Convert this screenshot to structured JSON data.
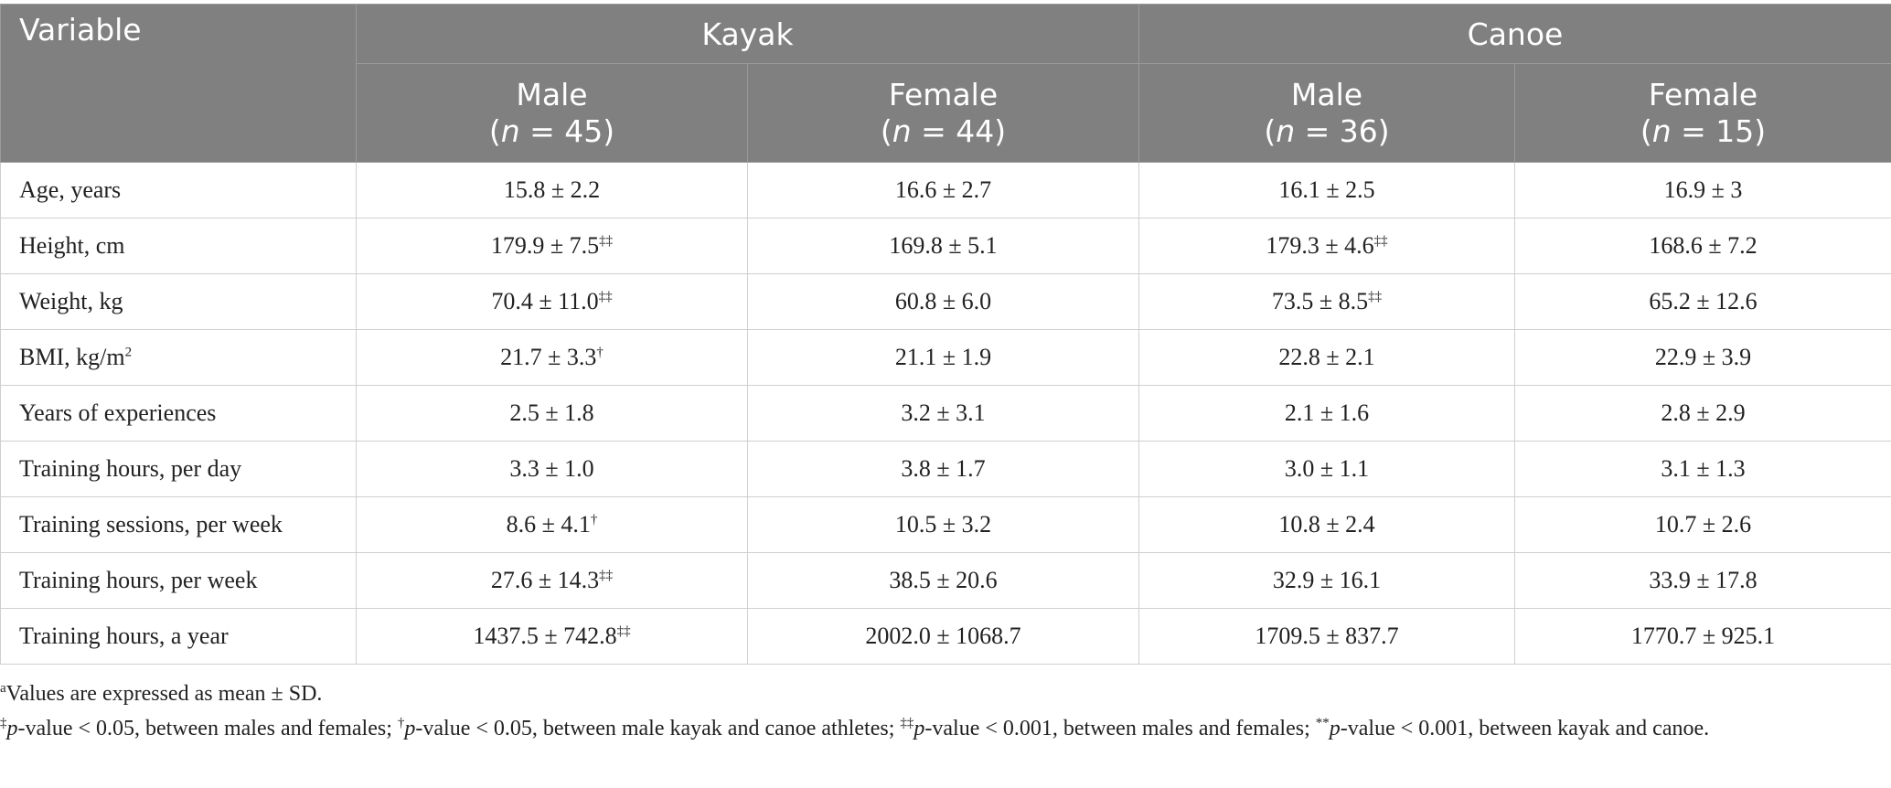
{
  "table": {
    "variable_header": "Variable",
    "groups": [
      "Kayak",
      "Canoe"
    ],
    "subheaders": [
      {
        "sex": "Male",
        "n_open": "(",
        "n_var": "n",
        "n_value": " = 45)"
      },
      {
        "sex": "Female",
        "n_open": "(",
        "n_var": "n",
        "n_value": " = 44)"
      },
      {
        "sex": "Male",
        "n_open": "(",
        "n_var": "n",
        "n_value": " = 36)"
      },
      {
        "sex": "Female",
        "n_open": "(",
        "n_var": "n",
        "n_value": " = 15)"
      }
    ],
    "rows": [
      {
        "label": "Age, years",
        "label_sup": "",
        "cells": [
          {
            "v": "15.8 ± 2.2",
            "s": ""
          },
          {
            "v": "16.6 ± 2.7",
            "s": ""
          },
          {
            "v": "16.1 ± 2.5",
            "s": ""
          },
          {
            "v": "16.9 ± 3",
            "s": ""
          }
        ]
      },
      {
        "label": "Height, cm",
        "label_sup": "",
        "cells": [
          {
            "v": "179.9 ± 7.5",
            "s": "‡‡"
          },
          {
            "v": "169.8 ± 5.1",
            "s": ""
          },
          {
            "v": "179.3 ± 4.6",
            "s": "‡‡"
          },
          {
            "v": "168.6 ± 7.2",
            "s": ""
          }
        ]
      },
      {
        "label": "Weight, kg",
        "label_sup": "",
        "cells": [
          {
            "v": "70.4 ± 11.0",
            "s": "‡‡"
          },
          {
            "v": "60.8 ± 6.0",
            "s": ""
          },
          {
            "v": "73.5 ± 8.5",
            "s": "‡‡"
          },
          {
            "v": "65.2 ± 12.6",
            "s": ""
          }
        ]
      },
      {
        "label": "BMI, kg/m",
        "label_sup": "2",
        "cells": [
          {
            "v": "21.7 ± 3.3",
            "s": "†"
          },
          {
            "v": "21.1 ± 1.9",
            "s": ""
          },
          {
            "v": "22.8 ± 2.1",
            "s": ""
          },
          {
            "v": "22.9 ± 3.9",
            "s": ""
          }
        ]
      },
      {
        "label": "Years of experiences",
        "label_sup": "",
        "cells": [
          {
            "v": "2.5 ± 1.8",
            "s": ""
          },
          {
            "v": "3.2 ± 3.1",
            "s": ""
          },
          {
            "v": "2.1 ± 1.6",
            "s": ""
          },
          {
            "v": "2.8 ± 2.9",
            "s": ""
          }
        ]
      },
      {
        "label": "Training hours, per day",
        "label_sup": "",
        "cells": [
          {
            "v": "3.3 ± 1.0",
            "s": ""
          },
          {
            "v": "3.8 ± 1.7",
            "s": ""
          },
          {
            "v": "3.0 ± 1.1",
            "s": ""
          },
          {
            "v": "3.1 ± 1.3",
            "s": ""
          }
        ]
      },
      {
        "label": "Training sessions, per week",
        "label_sup": "",
        "cells": [
          {
            "v": "8.6 ± 4.1",
            "s": "†"
          },
          {
            "v": "10.5 ± 3.2",
            "s": ""
          },
          {
            "v": "10.8 ± 2.4",
            "s": ""
          },
          {
            "v": "10.7 ± 2.6",
            "s": ""
          }
        ]
      },
      {
        "label": "Training hours, per week",
        "label_sup": "",
        "cells": [
          {
            "v": "27.6 ± 14.3",
            "s": "‡‡"
          },
          {
            "v": "38.5 ± 20.6",
            "s": ""
          },
          {
            "v": "32.9 ± 16.1",
            "s": ""
          },
          {
            "v": "33.9 ± 17.8",
            "s": ""
          }
        ]
      },
      {
        "label": "Training hours, a year",
        "label_sup": "",
        "cells": [
          {
            "v": "1437.5 ± 742.8",
            "s": "‡‡"
          },
          {
            "v": "2002.0 ± 1068.7",
            "s": ""
          },
          {
            "v": "1709.5 ± 837.7",
            "s": ""
          },
          {
            "v": "1770.7 ± 925.1",
            "s": ""
          }
        ]
      }
    ]
  },
  "footnotes": {
    "a": {
      "mark": "a",
      "text": "Values are expressed as mean ± SD."
    },
    "b": {
      "m1": "‡",
      "p1": "p",
      "t1": "-value < 0.05, between males and females; ",
      "m2": "†",
      "p2": "p",
      "t2": "-value < 0.05, between male kayak and canoe athletes; ",
      "m3": "‡‡",
      "p3": "p",
      "t3": "-value < 0.001, between males and females; ",
      "m4": "**",
      "p4": "p",
      "t4": "-value < 0.001, between kayak and canoe."
    }
  }
}
